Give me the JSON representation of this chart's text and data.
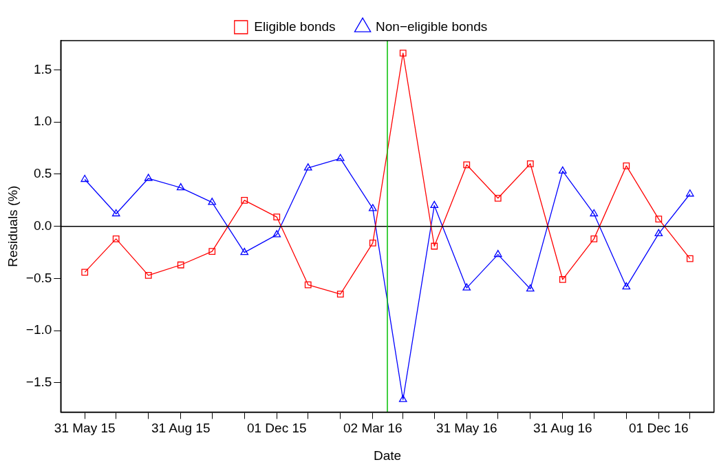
{
  "chart_data": {
    "type": "line",
    "xlabel": "Date",
    "ylabel": "Residuals (%)",
    "x": [
      "2015-05-31",
      "2015-06-30",
      "2015-07-31",
      "2015-08-31",
      "2015-09-30",
      "2015-10-31",
      "2015-12-01",
      "2015-12-31",
      "2016-01-31",
      "2016-03-02",
      "2016-03-31",
      "2016-04-30",
      "2016-05-31",
      "2016-06-30",
      "2016-07-31",
      "2016-08-31",
      "2016-09-30",
      "2016-10-31",
      "2016-12-01",
      "2016-12-31"
    ],
    "series": [
      {
        "name": "Eligible bonds",
        "color": "#ff0000",
        "marker": "square",
        "values": [
          -0.44,
          -0.12,
          -0.47,
          -0.37,
          -0.24,
          0.25,
          0.09,
          -0.56,
          -0.65,
          -0.16,
          1.66,
          -0.19,
          0.59,
          0.27,
          0.6,
          -0.51,
          -0.12,
          0.58,
          0.07,
          -0.31
        ]
      },
      {
        "name": "Non−eligible bonds",
        "color": "#0000ff",
        "marker": "triangle",
        "values": [
          0.45,
          0.12,
          0.46,
          0.37,
          0.23,
          -0.25,
          -0.08,
          0.56,
          0.65,
          0.17,
          -1.66,
          0.2,
          -0.59,
          -0.27,
          -0.6,
          0.53,
          0.12,
          -0.58,
          -0.07,
          0.31
        ]
      }
    ],
    "xlim": [
      "2015-05-08",
      "2017-01-23"
    ],
    "xticks": [
      {
        "value": "2015-05-31",
        "label": "31 May 15"
      },
      {
        "value": "2015-06-30",
        "label": null
      },
      {
        "value": "2015-07-31",
        "label": null
      },
      {
        "value": "2015-08-31",
        "label": "31 Aug 15"
      },
      {
        "value": "2015-09-30",
        "label": null
      },
      {
        "value": "2015-10-31",
        "label": null
      },
      {
        "value": "2015-12-01",
        "label": "01 Dec 15"
      },
      {
        "value": "2015-12-31",
        "label": null
      },
      {
        "value": "2016-01-31",
        "label": null
      },
      {
        "value": "2016-03-02",
        "label": "02 Mar 16"
      },
      {
        "value": "2016-03-31",
        "label": null
      },
      {
        "value": "2016-04-30",
        "label": null
      },
      {
        "value": "2016-05-31",
        "label": "31 May 16"
      },
      {
        "value": "2016-06-30",
        "label": null
      },
      {
        "value": "2016-07-31",
        "label": null
      },
      {
        "value": "2016-08-31",
        "label": "31 Aug 16"
      },
      {
        "value": "2016-09-30",
        "label": null
      },
      {
        "value": "2016-10-31",
        "label": null
      },
      {
        "value": "2016-12-01",
        "label": "01 Dec 16"
      },
      {
        "value": "2016-12-31",
        "label": null
      }
    ],
    "ylim": [
      -1.78,
      1.78
    ],
    "yticks": [
      {
        "value": -1.5,
        "label": "−1.5"
      },
      {
        "value": -1,
        "label": "−1.0"
      },
      {
        "value": -0.5,
        "label": "−0.5"
      },
      {
        "value": 0,
        "label": "0.0"
      },
      {
        "value": 0.5,
        "label": "0.5"
      },
      {
        "value": 1,
        "label": "1.0"
      },
      {
        "value": 1.5,
        "label": "1.5"
      }
    ],
    "ref_lines": [
      {
        "axis": "y",
        "value": 0,
        "color": "#000000"
      },
      {
        "axis": "x",
        "value": "2016-03-16",
        "color": "#00c000"
      }
    ],
    "legend": "top",
    "grid": false,
    "line_style": "solid"
  }
}
